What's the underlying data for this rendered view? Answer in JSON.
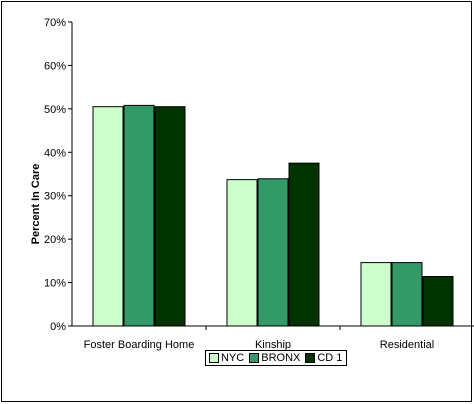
{
  "chart_data": {
    "type": "bar",
    "title": "",
    "xlabel": "",
    "ylabel": "Percent In Care",
    "categories": [
      "Foster Boarding Home",
      "Kinship",
      "Residential"
    ],
    "series": [
      {
        "name": "NYC",
        "values": [
          50.5,
          33.7,
          14.6
        ],
        "color": "#ccffcc"
      },
      {
        "name": "BRONX",
        "values": [
          50.8,
          33.9,
          14.6
        ],
        "color": "#339966"
      },
      {
        "name": "CD 1",
        "values": [
          50.5,
          37.5,
          11.4
        ],
        "color": "#003300"
      }
    ],
    "ylim": [
      0,
      70
    ],
    "yticks": [
      0,
      10,
      20,
      30,
      40,
      50,
      60,
      70
    ],
    "ytick_labels": [
      "0%",
      "10%",
      "20%",
      "30%",
      "40%",
      "50%",
      "60%",
      "70%"
    ],
    "grid": false,
    "legend_position": "bottom"
  }
}
